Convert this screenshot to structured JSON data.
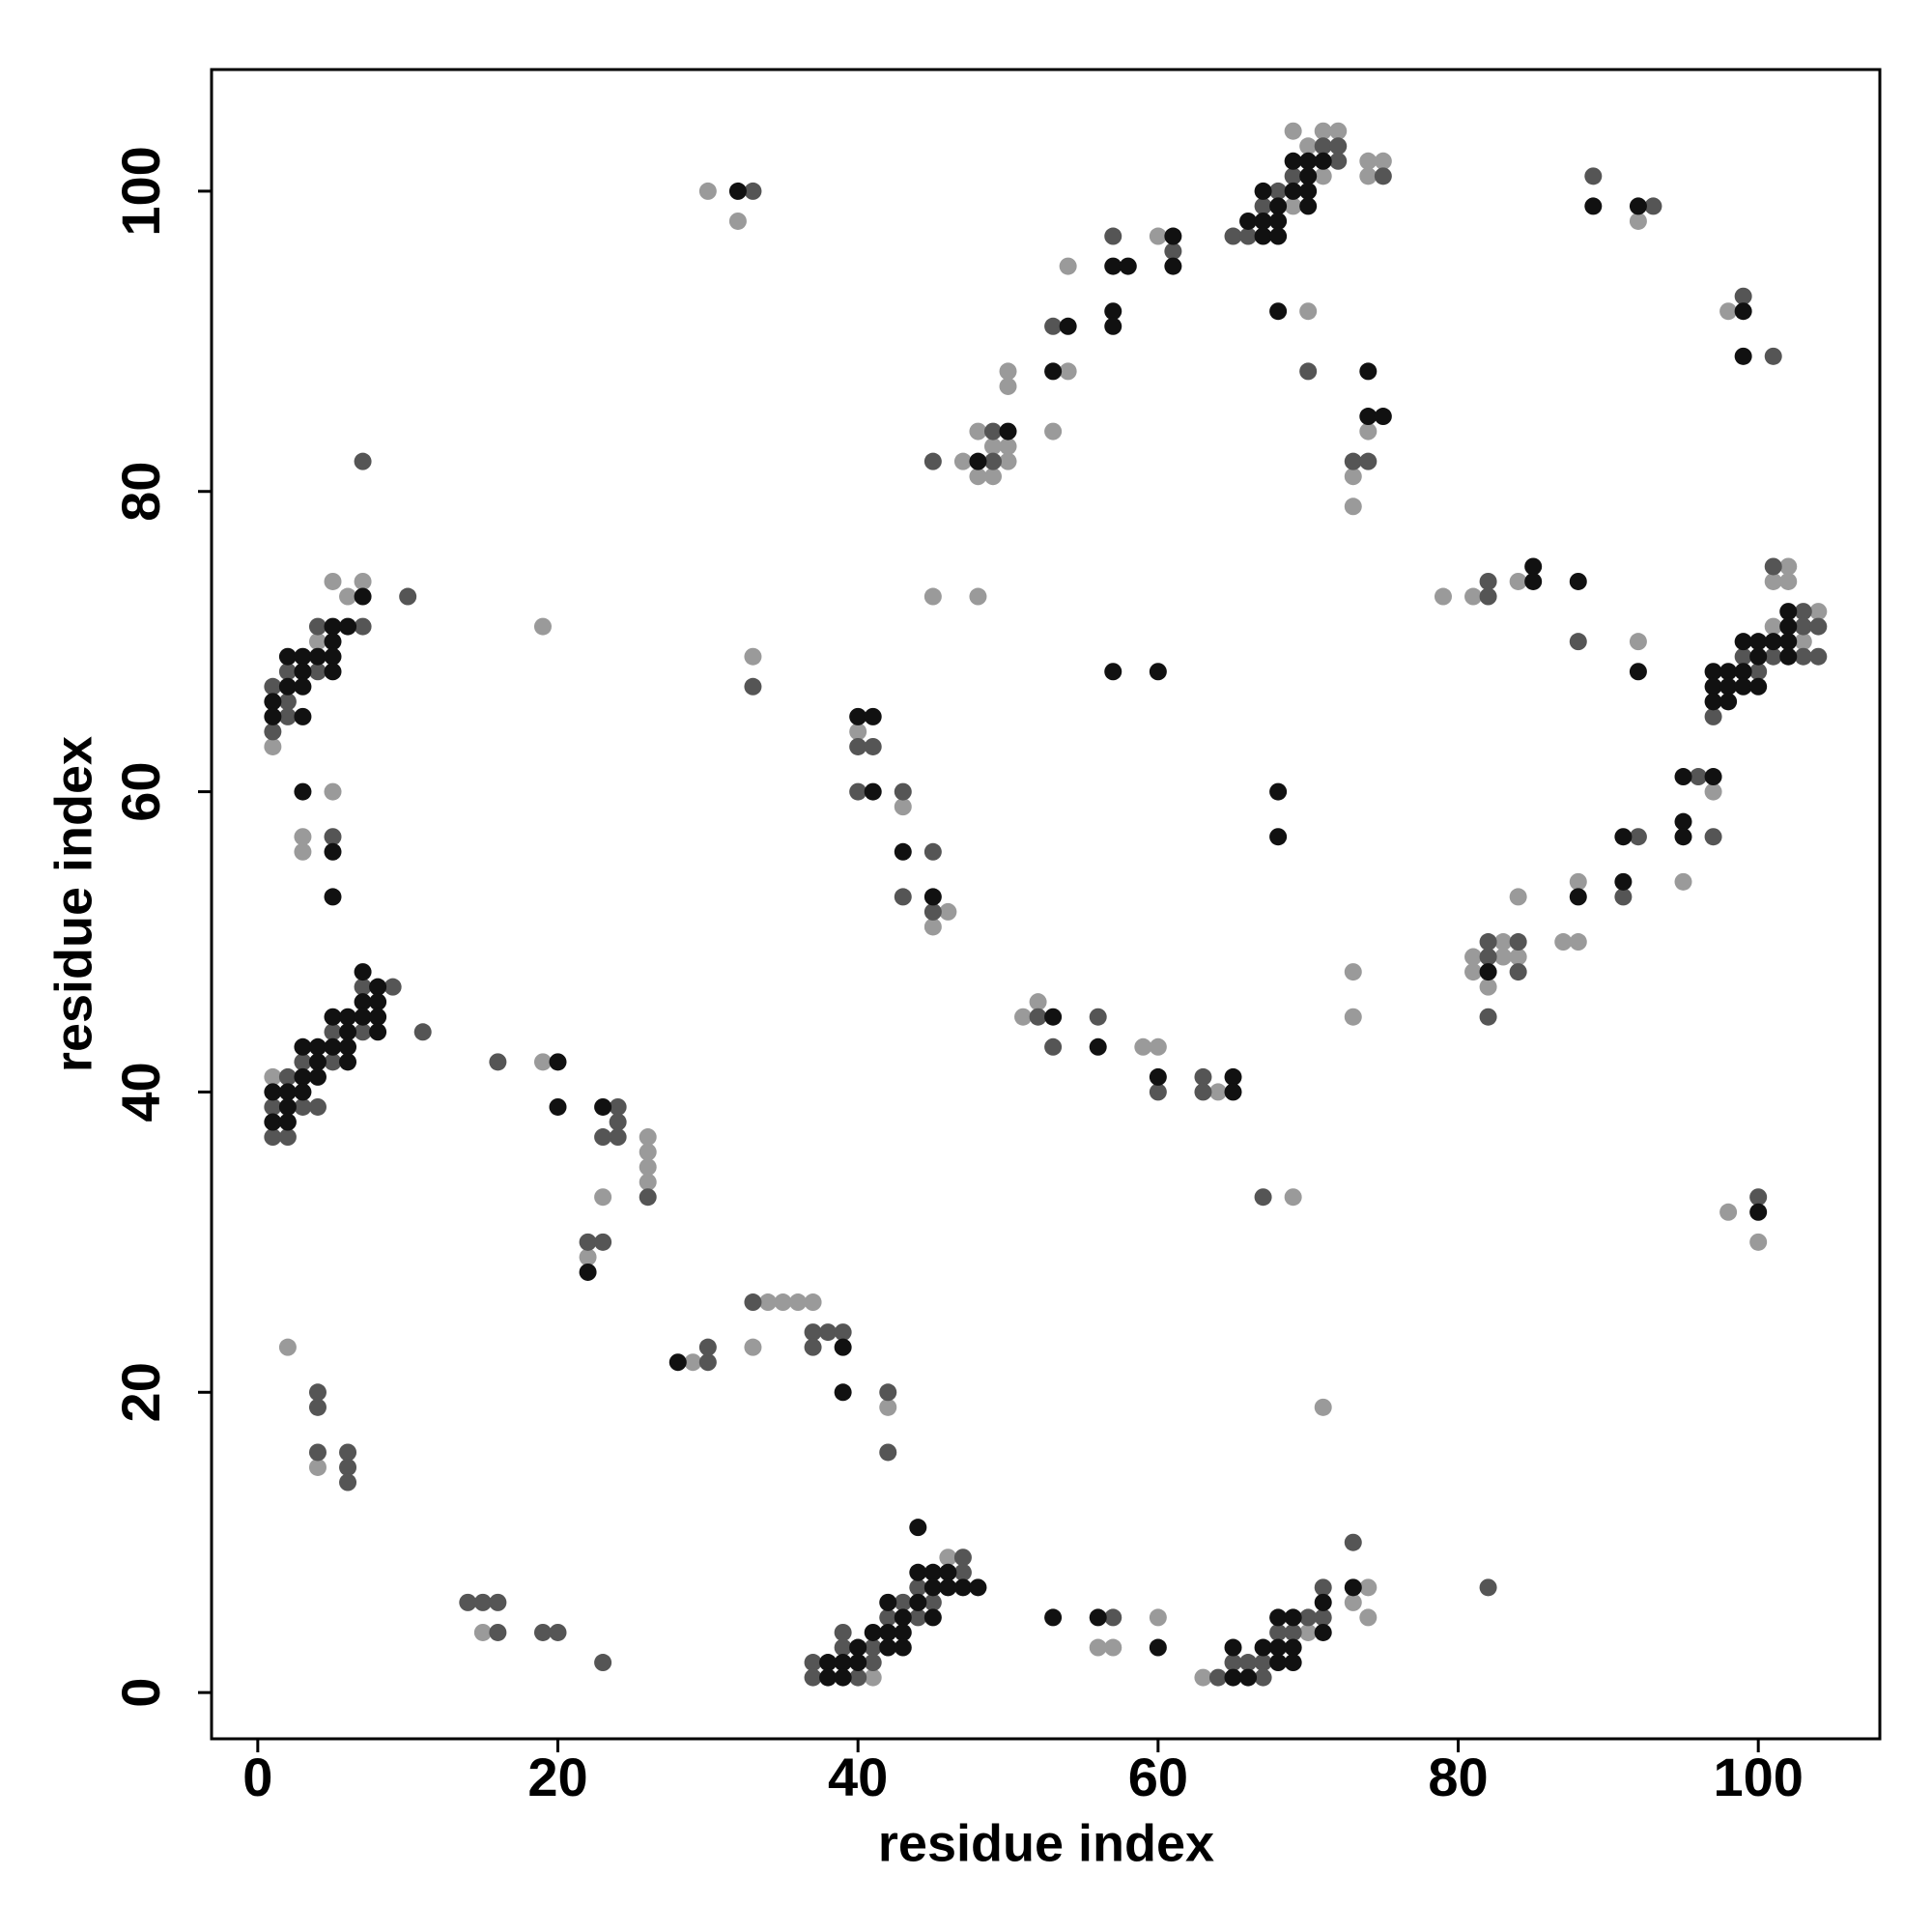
{
  "chart_data": {
    "type": "scatter",
    "xlabel": "residue index",
    "ylabel": "residue index",
    "xlim": [
      -3.08,
      108.1
    ],
    "ylim": [
      -3.08,
      108.1
    ],
    "xticks": [
      0,
      20,
      40,
      60,
      80,
      100
    ],
    "yticks": [
      0,
      20,
      40,
      60,
      80,
      100
    ],
    "grid": false,
    "series": [
      {
        "color": "#9a9a9a",
        "x": [
          1,
          1,
          4,
          5,
          6,
          7,
          3,
          3,
          5,
          2,
          4,
          15,
          19,
          23,
          26,
          26,
          26,
          26,
          22,
          19,
          29,
          34,
          35,
          36,
          37,
          33,
          42,
          30,
          32,
          33,
          40,
          43,
          46,
          45,
          41,
          46,
          56,
          57,
          60,
          63,
          70,
          73,
          74,
          74,
          71,
          69,
          51,
          52,
          59,
          60,
          64,
          45,
          48,
          47,
          48,
          48,
          49,
          49,
          50,
          50,
          50,
          50,
          54,
          53,
          54,
          60,
          69,
          69,
          70,
          71,
          71,
          72,
          74,
          74,
          75,
          70,
          74,
          73,
          73,
          73,
          73,
          79,
          81,
          84,
          92,
          84,
          81,
          81,
          82,
          83,
          83,
          84,
          87,
          88,
          88,
          97,
          95,
          101,
          101,
          102,
          102,
          103,
          104,
          92,
          98,
          98,
          100
        ],
        "values": [
          41,
          63,
          70,
          74,
          73,
          74,
          57,
          56,
          60,
          23,
          15,
          4,
          42,
          33,
          37,
          36,
          35,
          34,
          29,
          71,
          22,
          26,
          26,
          26,
          26,
          23,
          19,
          100,
          98,
          69,
          64,
          59,
          52,
          51,
          1,
          9,
          3,
          3,
          5,
          1,
          4,
          6,
          7,
          5,
          19,
          33,
          45,
          46,
          43,
          43,
          40,
          73,
          73,
          82,
          84,
          81,
          83,
          81,
          88,
          87,
          83,
          82,
          88,
          84,
          95,
          97,
          104,
          99,
          103,
          104,
          101,
          104,
          102,
          101,
          102,
          92,
          84,
          81,
          79,
          48,
          45,
          73,
          73,
          74,
          70,
          53,
          49,
          48,
          47,
          50,
          49,
          49,
          50,
          50,
          54,
          60,
          54,
          74,
          71,
          75,
          74,
          70,
          72,
          98,
          92,
          32,
          30
        ]
      },
      {
        "color": "#555555",
        "x": [
          1,
          1,
          2,
          2,
          3,
          3,
          4,
          5,
          5,
          7,
          7,
          9,
          11,
          1,
          1,
          2,
          2,
          2,
          4,
          4,
          7,
          7,
          10,
          5,
          4,
          4,
          4,
          6,
          6,
          6,
          14,
          15,
          16,
          16,
          19,
          20,
          23,
          16,
          24,
          24,
          24,
          23,
          26,
          22,
          23,
          30,
          30,
          33,
          37,
          38,
          39,
          37,
          42,
          42,
          33,
          33,
          40,
          41,
          40,
          43,
          45,
          43,
          45,
          37,
          37,
          39,
          39,
          40,
          41,
          41,
          42,
          43,
          44,
          44,
          45,
          47,
          47,
          57,
          64,
          65,
          66,
          67,
          67,
          68,
          69,
          70,
          71,
          71,
          73,
          82,
          67,
          52,
          53,
          56,
          60,
          63,
          63,
          45,
          49,
          49,
          53,
          57,
          61,
          65,
          66,
          67,
          68,
          69,
          71,
          72,
          72,
          75,
          70,
          73,
          74,
          82,
          82,
          88,
          82,
          82,
          82,
          84,
          84,
          91,
          92,
          96,
          97,
          97,
          99,
          100,
          101,
          101,
          103,
          103,
          103,
          104,
          104,
          89,
          93,
          99,
          101,
          100
        ],
        "values": [
          39,
          37,
          41,
          37,
          42,
          39,
          39,
          44,
          42,
          47,
          44,
          47,
          44,
          67,
          64,
          68,
          66,
          65,
          71,
          68,
          71,
          82,
          73,
          57,
          20,
          19,
          16,
          16,
          15,
          14,
          6,
          6,
          6,
          4,
          4,
          4,
          2,
          42,
          39,
          38,
          37,
          37,
          33,
          30,
          30,
          22,
          23,
          26,
          24,
          24,
          24,
          23,
          20,
          16,
          100,
          67,
          63,
          63,
          60,
          60,
          56,
          53,
          52,
          2,
          1,
          4,
          3,
          1,
          3,
          2,
          5,
          6,
          7,
          5,
          6,
          9,
          8,
          5,
          1,
          2,
          2,
          2,
          1,
          4,
          4,
          5,
          7,
          5,
          10,
          7,
          33,
          45,
          43,
          45,
          40,
          41,
          40,
          82,
          84,
          82,
          91,
          97,
          96,
          97,
          97,
          99,
          100,
          101,
          103,
          103,
          102,
          101,
          88,
          82,
          82,
          74,
          73,
          70,
          50,
          49,
          45,
          50,
          48,
          53,
          57,
          61,
          57,
          65,
          69,
          68,
          75,
          69,
          72,
          71,
          69,
          71,
          69,
          101,
          99,
          93,
          89,
          33
        ]
      },
      {
        "color": "#111111",
        "x": [
          1,
          1,
          2,
          2,
          2,
          3,
          3,
          3,
          4,
          4,
          4,
          5,
          5,
          6,
          6,
          6,
          6,
          7,
          7,
          7,
          8,
          8,
          8,
          8,
          1,
          1,
          2,
          2,
          3,
          3,
          3,
          3,
          4,
          5,
          5,
          5,
          5,
          6,
          7,
          3,
          5,
          5,
          20,
          20,
          23,
          22,
          28,
          39,
          39,
          32,
          40,
          41,
          41,
          43,
          45,
          38,
          38,
          39,
          39,
          40,
          40,
          41,
          42,
          42,
          42,
          43,
          43,
          43,
          44,
          44,
          44,
          45,
          45,
          45,
          46,
          46,
          47,
          48,
          53,
          56,
          60,
          65,
          65,
          66,
          67,
          68,
          68,
          68,
          69,
          69,
          69,
          71,
          71,
          73,
          53,
          56,
          60,
          65,
          65,
          48,
          50,
          54,
          53,
          57,
          58,
          57,
          57,
          61,
          61,
          57,
          60,
          66,
          67,
          67,
          67,
          68,
          68,
          68,
          69,
          69,
          70,
          70,
          70,
          70,
          71,
          68,
          74,
          74,
          75,
          68,
          68,
          85,
          85,
          88,
          92,
          82,
          88,
          91,
          91,
          95,
          97,
          95,
          95,
          97,
          97,
          97,
          98,
          98,
          98,
          99,
          99,
          99,
          100,
          100,
          100,
          101,
          102,
          102,
          102,
          102,
          89,
          92,
          99,
          99,
          100
        ],
        "values": [
          40,
          38,
          40,
          39,
          38,
          43,
          41,
          40,
          43,
          42,
          41,
          45,
          43,
          45,
          44,
          43,
          42,
          48,
          46,
          45,
          47,
          46,
          45,
          44,
          66,
          65,
          69,
          67,
          69,
          68,
          67,
          65,
          69,
          71,
          70,
          69,
          68,
          71,
          73,
          60,
          56,
          53,
          42,
          39,
          39,
          28,
          22,
          23,
          20,
          100,
          65,
          65,
          60,
          56,
          53,
          2,
          1,
          2,
          1,
          3,
          2,
          4,
          6,
          4,
          3,
          5,
          4,
          3,
          11,
          8,
          6,
          8,
          7,
          5,
          8,
          7,
          7,
          7,
          5,
          5,
          3,
          3,
          1,
          1,
          3,
          5,
          3,
          2,
          5,
          3,
          2,
          6,
          4,
          7,
          45,
          43,
          41,
          41,
          40,
          82,
          84,
          91,
          88,
          95,
          95,
          92,
          91,
          97,
          95,
          68,
          68,
          98,
          100,
          98,
          97,
          99,
          98,
          97,
          102,
          100,
          102,
          101,
          100,
          99,
          102,
          92,
          88,
          85,
          85,
          60,
          57,
          75,
          74,
          74,
          68,
          48,
          53,
          54,
          57,
          61,
          61,
          58,
          57,
          68,
          67,
          66,
          68,
          67,
          66,
          70,
          68,
          67,
          70,
          69,
          67,
          70,
          72,
          71,
          70,
          69,
          99,
          99,
          92,
          89,
          32
        ]
      }
    ]
  }
}
